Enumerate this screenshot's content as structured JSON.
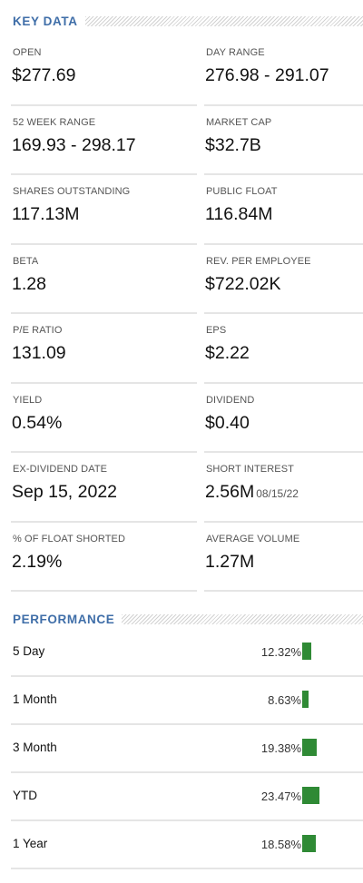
{
  "key_data": {
    "title": "KEY DATA",
    "items": [
      {
        "label": "OPEN",
        "value": "$277.69"
      },
      {
        "label": "DAY RANGE",
        "value": "276.98 - 291.07"
      },
      {
        "label": "52 WEEK RANGE",
        "value": "169.93 - 298.17"
      },
      {
        "label": "MARKET CAP",
        "value": "$32.7B"
      },
      {
        "label": "SHARES OUTSTANDING",
        "value": "117.13M"
      },
      {
        "label": "PUBLIC FLOAT",
        "value": "116.84M"
      },
      {
        "label": "BETA",
        "value": "1.28"
      },
      {
        "label": "REV. PER EMPLOYEE",
        "value": "$722.02K"
      },
      {
        "label": "P/E RATIO",
        "value": "131.09"
      },
      {
        "label": "EPS",
        "value": "$2.22"
      },
      {
        "label": "YIELD",
        "value": "0.54%"
      },
      {
        "label": "DIVIDEND",
        "value": "$0.40"
      },
      {
        "label": "EX-DIVIDEND DATE",
        "value": "Sep 15, 2022"
      },
      {
        "label": "SHORT INTEREST",
        "value": "2.56M",
        "sub": "08/15/22"
      },
      {
        "label": "% OF FLOAT SHORTED",
        "value": "2.19%"
      },
      {
        "label": "AVERAGE VOLUME",
        "value": "1.27M"
      }
    ]
  },
  "performance": {
    "title": "PERFORMANCE",
    "bar_color": "#2f8a35",
    "rows": [
      {
        "period": "5 Day",
        "value": "12.32%",
        "percent": 12.32
      },
      {
        "period": "1 Month",
        "value": "8.63%",
        "percent": 8.63
      },
      {
        "period": "3 Month",
        "value": "19.38%",
        "percent": 19.38
      },
      {
        "period": "YTD",
        "value": "23.47%",
        "percent": 23.47
      },
      {
        "period": "1 Year",
        "value": "18.58%",
        "percent": 18.58
      }
    ]
  }
}
